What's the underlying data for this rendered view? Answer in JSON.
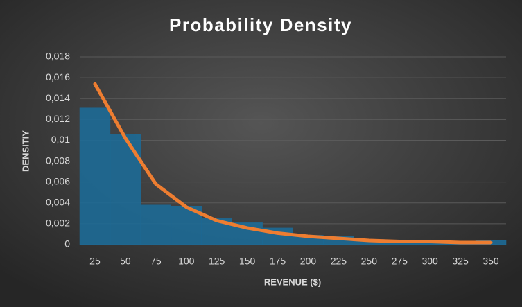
{
  "chart_data": {
    "type": "combo",
    "title": "Probability Density",
    "x_label": "REVENUE ($)",
    "y_label": "DENSITIY",
    "categories": [
      "25",
      "50",
      "75",
      "100",
      "125",
      "150",
      "175",
      "200",
      "225",
      "250",
      "275",
      "300",
      "325",
      "350"
    ],
    "series": [
      {
        "type": "bar",
        "color": "#1d6a96",
        "values": [
          0.0131,
          0.0106,
          0.0038,
          0.0037,
          0.0025,
          0.0021,
          0.0016,
          0.0009,
          0.0008,
          0.0005,
          0.0004,
          0.0003,
          0.0002,
          0.0004
        ]
      },
      {
        "type": "line",
        "color": "#ed7d31",
        "values": [
          0.0154,
          0.0102,
          0.0058,
          0.0036,
          0.0023,
          0.0016,
          0.0011,
          0.0008,
          0.0006,
          0.0004,
          0.0003,
          0.0003,
          0.0002,
          0.0002
        ]
      }
    ],
    "ylim": [
      0,
      0.018
    ],
    "yticks": [
      0,
      {
        "value": 0.002,
        "label": "0,002"
      },
      {
        "value": 0.004,
        "label": "0,004"
      },
      {
        "value": 0.006,
        "label": "0,006"
      },
      {
        "value": 0.008,
        "label": "0,008"
      },
      {
        "value": 0.01,
        "label": "0,01"
      },
      {
        "value": 0.012,
        "label": "0,012"
      },
      {
        "value": 0.014,
        "label": "0,014"
      },
      {
        "value": 0.016,
        "label": "0,016"
      },
      {
        "value": 0.018,
        "label": "0,018"
      }
    ],
    "grid": true
  }
}
